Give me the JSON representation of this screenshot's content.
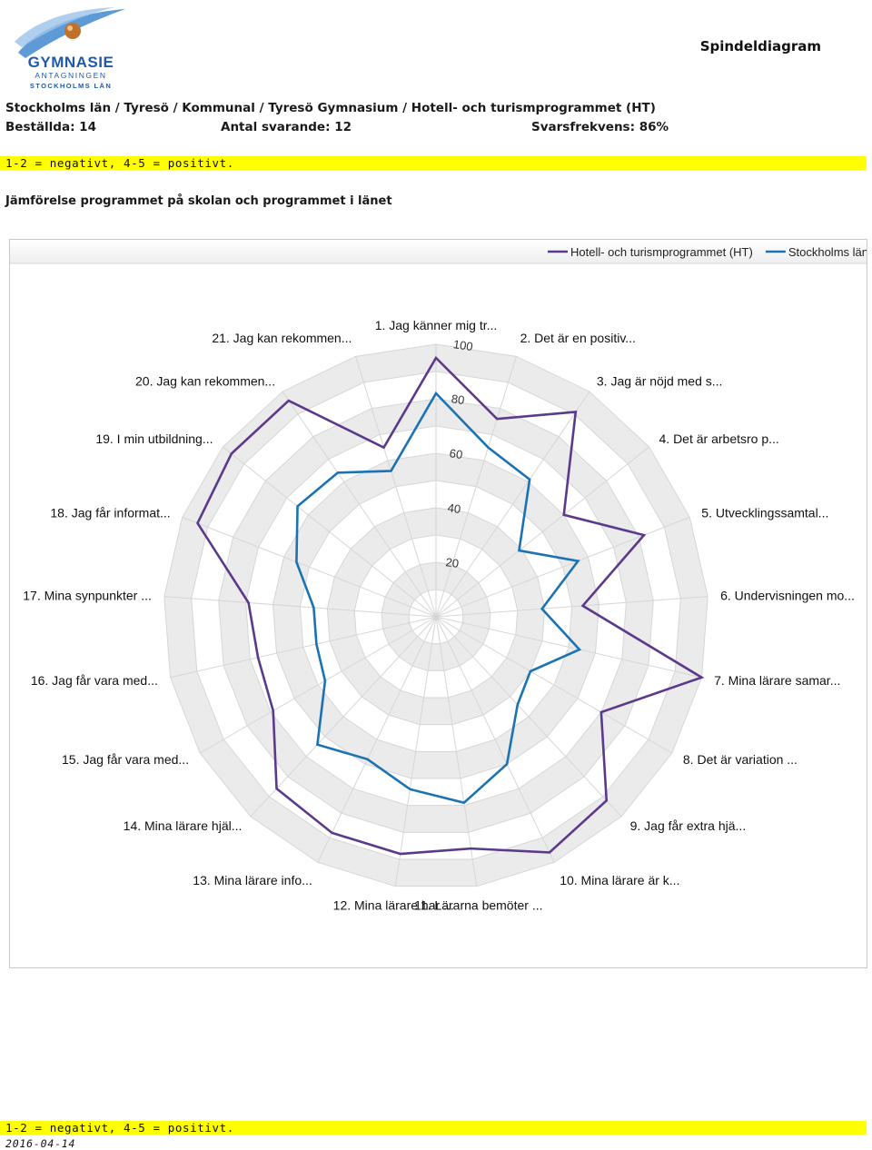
{
  "header": {
    "logo": {
      "text_main": "GYMNASIE",
      "text_sub1": "ANTAGNINGEN",
      "text_sub2": "STOCKHOLMS LÄN",
      "colors": {
        "swoosh": "#4b8fd1",
        "globe": "#c0722a",
        "text": "#1f5aa8"
      }
    },
    "title": "Spindeldiagram",
    "breadcrumb": "Stockholms län / Tyresö / Kommunal / Tyresö Gymnasium / Hotell- och turismprogrammet (HT)",
    "ordered": "Beställda: 14",
    "respondents": "Antal svarande: 12",
    "response_rate": "Svarsfrekvens: 86%"
  },
  "scale_note": "1-2 = negativt, 4-5 = positivt.",
  "chart_heading": "Jämförelse programmet på skolan och programmet i länet",
  "footer": {
    "scale_note": "1-2 = negativt, 4-5 = positivt.",
    "date": "2016-04-14"
  },
  "chart_data": {
    "type": "radar",
    "categories": [
      "1. Jag känner mig tr...",
      "2. Det är en positiv...",
      "3. Jag är nöjd med s...",
      "4. Det är arbetsro p...",
      "5. Utvecklingssamtal...",
      "6. Undervisningen mo...",
      "7. Mina lärare samar...",
      "8. Det är variation ...",
      "9. Jag får extra hjä...",
      "10. Mina lärare är k...",
      "11. Lärarna bemöter ...",
      "12. Mina lärare har ...",
      "13. Mina lärare info...",
      "14. Mina lärare hjäl...",
      "15. Jag får vara med...",
      "16. Jag får vara med...",
      "17. Mina synpunkter ...",
      "18. Jag får informat...",
      "19. I min utbildning...",
      "20. Jag kan rekommen...",
      "21. Jag kan rekommen..."
    ],
    "rlim": [
      0,
      100
    ],
    "ticks": [
      20,
      40,
      60,
      80,
      100
    ],
    "series": [
      {
        "name": "Hotell- och turismprogrammet (HT)",
        "color": "#5b3a8c",
        "values": [
          95,
          76,
          91,
          60,
          82,
          54,
          100,
          70,
          92,
          96,
          86,
          88,
          88,
          86,
          69,
          67,
          69,
          94,
          96,
          96,
          65
        ]
      },
      {
        "name": "Stockholms län",
        "color": "#1b73b3",
        "values": [
          82,
          65,
          61,
          39,
          56,
          39,
          54,
          40,
          44,
          60,
          69,
          64,
          58,
          64,
          47,
          45,
          45,
          55,
          65,
          64,
          56
        ]
      }
    ],
    "legend": "top-right",
    "grid": true,
    "alternating_band_color": "#ebebeb"
  }
}
